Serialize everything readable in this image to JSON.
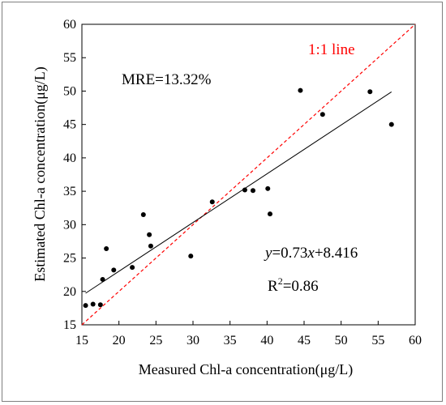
{
  "chart_data": {
    "type": "scatter",
    "xlabel": "Measured Chl-a concentration(μg/L)",
    "ylabel": "Estimated Chl-a concentration(μg/L)",
    "xlim": [
      15,
      60
    ],
    "ylim": [
      15,
      60
    ],
    "xticks": [
      15,
      20,
      25,
      30,
      35,
      40,
      45,
      50,
      55,
      60
    ],
    "yticks": [
      15,
      20,
      25,
      30,
      35,
      40,
      45,
      50,
      55,
      60
    ],
    "grid": false,
    "points": [
      {
        "x": 15.5,
        "y": 17.9
      },
      {
        "x": 16.5,
        "y": 18.1
      },
      {
        "x": 17.5,
        "y": 18.0
      },
      {
        "x": 17.8,
        "y": 21.8
      },
      {
        "x": 18.3,
        "y": 26.4
      },
      {
        "x": 19.3,
        "y": 23.2
      },
      {
        "x": 21.8,
        "y": 23.6
      },
      {
        "x": 23.3,
        "y": 31.5
      },
      {
        "x": 24.1,
        "y": 28.5
      },
      {
        "x": 24.3,
        "y": 26.8
      },
      {
        "x": 29.7,
        "y": 25.3
      },
      {
        "x": 32.6,
        "y": 33.4
      },
      {
        "x": 37.0,
        "y": 35.2
      },
      {
        "x": 38.1,
        "y": 35.1
      },
      {
        "x": 40.1,
        "y": 35.4
      },
      {
        "x": 40.4,
        "y": 31.6
      },
      {
        "x": 44.5,
        "y": 50.1
      },
      {
        "x": 47.5,
        "y": 46.5
      },
      {
        "x": 53.9,
        "y": 49.9
      },
      {
        "x": 56.8,
        "y": 45.0
      }
    ],
    "fit_line": {
      "slope": 0.73,
      "intercept": 8.416,
      "x_range": [
        15.5,
        56.8
      ],
      "color": "#000000"
    },
    "identity_line": {
      "label": "1:1 line",
      "color": "#ff0000",
      "style": "dashed"
    },
    "annotations": {
      "mre": "MRE=13.32%",
      "eq_y": "y",
      "eq_mid": "=0.73",
      "eq_x": "x",
      "eq_end": "+8.416",
      "r2_base": "R",
      "r2_sup": "2",
      "r2_val": "=0.86"
    }
  }
}
